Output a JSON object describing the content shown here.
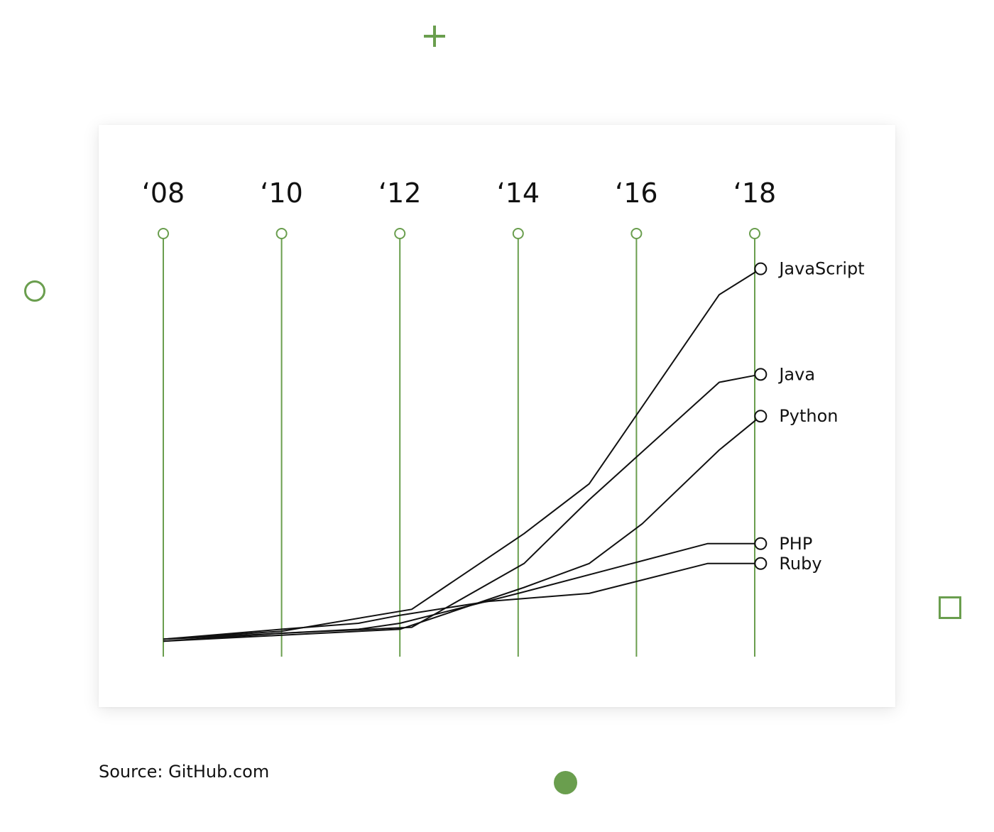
{
  "colors": {
    "accent": "#6a9e4e",
    "line": "#111111",
    "background": "#ffffff"
  },
  "source": "Source: GitHub.com",
  "decorations": [
    "plus-icon",
    "ring-icon",
    "square-icon",
    "dot-icon"
  ],
  "chart_data": {
    "type": "line",
    "title": "",
    "xlabel": "",
    "ylabel": "",
    "x_ticks": [
      "‘08",
      "‘10",
      "‘12",
      "‘14",
      "‘16",
      "‘18"
    ],
    "x": [
      2008,
      2010,
      2012,
      2014,
      2016,
      2018
    ],
    "grid": true,
    "y_axis_shown": false,
    "ylim": [
      0,
      100
    ],
    "series": [
      {
        "name": "JavaScript",
        "points": [
          [
            2008,
            1
          ],
          [
            2010,
            3
          ],
          [
            2012.2,
            8.5
          ],
          [
            2014.1,
            27.5
          ],
          [
            2015.2,
            40
          ],
          [
            2017.4,
            87.5
          ],
          [
            2018.1,
            94
          ]
        ]
      },
      {
        "name": "Java",
        "points": [
          [
            2008,
            0.5
          ],
          [
            2010,
            2.5
          ],
          [
            2012.2,
            4
          ],
          [
            2014.1,
            20
          ],
          [
            2015.2,
            36
          ],
          [
            2017.4,
            65.5
          ],
          [
            2018.1,
            67.5
          ]
        ]
      },
      {
        "name": "Python",
        "points": [
          [
            2008,
            0.5
          ],
          [
            2010,
            2
          ],
          [
            2012,
            3.5
          ],
          [
            2014.1,
            14
          ],
          [
            2015.2,
            20
          ],
          [
            2016.1,
            30
          ],
          [
            2017.4,
            48.5
          ],
          [
            2018.1,
            57
          ]
        ]
      },
      {
        "name": "PHP",
        "points": [
          [
            2008,
            1
          ],
          [
            2010,
            2.5
          ],
          [
            2011.3,
            3.5
          ],
          [
            2012,
            5
          ],
          [
            2014,
            12.5
          ],
          [
            2017.2,
            25
          ],
          [
            2018.1,
            25
          ]
        ]
      },
      {
        "name": "Ruby",
        "points": [
          [
            2008,
            1
          ],
          [
            2010,
            3.5
          ],
          [
            2011.3,
            5
          ],
          [
            2012,
            7
          ],
          [
            2013.5,
            10.5
          ],
          [
            2015.2,
            12.5
          ],
          [
            2017.2,
            20
          ],
          [
            2018.1,
            20
          ]
        ]
      }
    ]
  }
}
